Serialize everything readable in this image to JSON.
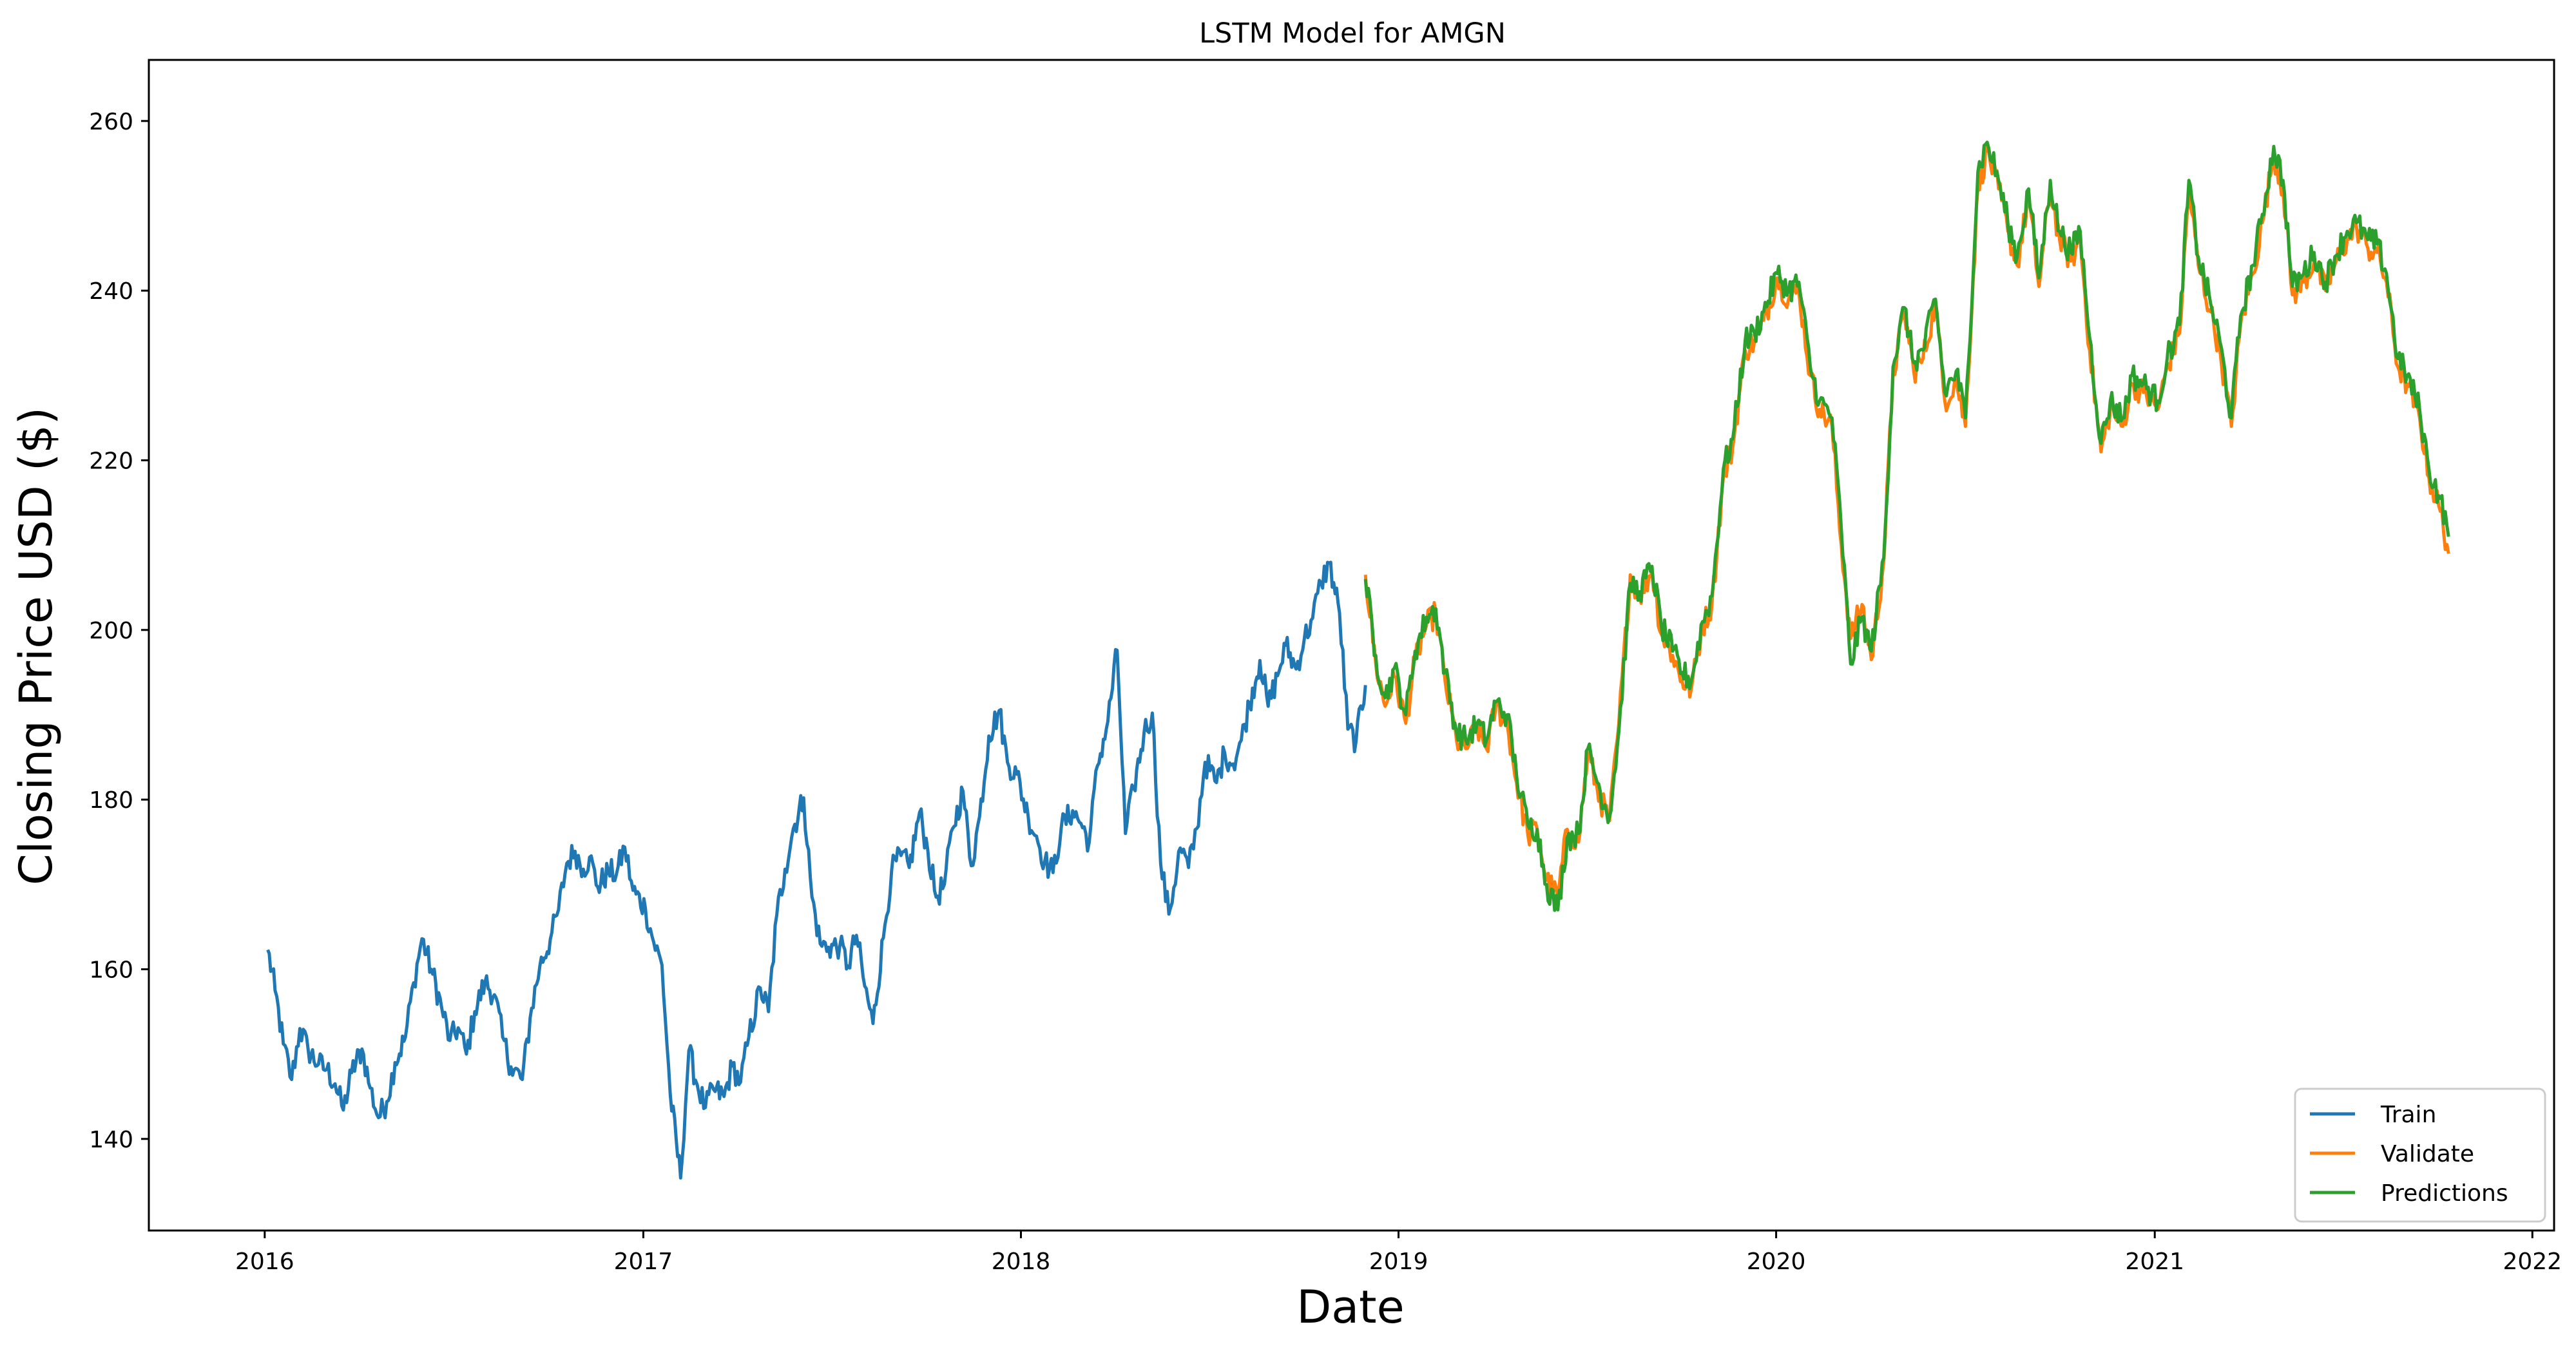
{
  "chart_data": {
    "type": "line",
    "title": "LSTM Model for AMGN",
    "xlabel": "Date",
    "ylabel": "Closing Price USD ($)",
    "xlim": [
      "2015-09-11",
      "2022-01-22"
    ],
    "ylim": [
      129.2,
      267.2
    ],
    "x_tick_labels": [
      "2016",
      "2017",
      "2018",
      "2019",
      "2020",
      "2021",
      "2022"
    ],
    "x_ticks": [
      "2016-01-01",
      "2017-01-01",
      "2018-01-01",
      "2019-01-01",
      "2020-01-01",
      "2021-01-01",
      "2022-01-01"
    ],
    "y_ticks": [
      140,
      160,
      180,
      200,
      220,
      240,
      260
    ],
    "grid": false,
    "legend_position": "lower-right",
    "series": [
      {
        "name": "Train",
        "color": "#1f77b4",
        "x": [
          "2016-01-04",
          "2016-01-11",
          "2016-01-19",
          "2016-01-27",
          "2016-02-04",
          "2016-02-12",
          "2016-02-22",
          "2016-03-01",
          "2016-03-09",
          "2016-03-17",
          "2016-03-25",
          "2016-04-04",
          "2016-04-12",
          "2016-04-20",
          "2016-04-28",
          "2016-05-06",
          "2016-05-16",
          "2016-05-24",
          "2016-06-01",
          "2016-06-10",
          "2016-06-20",
          "2016-06-28",
          "2016-07-06",
          "2016-07-14",
          "2016-07-22",
          "2016-08-01",
          "2016-08-10",
          "2016-08-18",
          "2016-08-26",
          "2016-09-06",
          "2016-09-15",
          "2016-09-23",
          "2016-10-03",
          "2016-10-11",
          "2016-10-19",
          "2016-10-27",
          "2016-11-04",
          "2016-11-10",
          "2016-11-18",
          "2016-11-28",
          "2016-12-06",
          "2016-12-14",
          "2016-12-22",
          "2017-01-03",
          "2017-01-11",
          "2017-01-19",
          "2017-01-27",
          "2017-02-06",
          "2017-02-14",
          "2017-02-22",
          "2017-03-02",
          "2017-03-10",
          "2017-03-20",
          "2017-03-28",
          "2017-04-05",
          "2017-04-13",
          "2017-04-24",
          "2017-05-02",
          "2017-05-10",
          "2017-05-18",
          "2017-05-26",
          "2017-06-05",
          "2017-06-13",
          "2017-06-21",
          "2017-06-29",
          "2017-07-10",
          "2017-07-18",
          "2017-07-26",
          "2017-08-03",
          "2017-08-11",
          "2017-08-21",
          "2017-08-29",
          "2017-09-07",
          "2017-09-15",
          "2017-09-25",
          "2017-10-03",
          "2017-10-11",
          "2017-10-19",
          "2017-10-27",
          "2017-11-06",
          "2017-11-14",
          "2017-11-22",
          "2017-12-01",
          "2017-12-11",
          "2017-12-19",
          "2017-12-28",
          "2018-01-08",
          "2018-01-16",
          "2018-01-24",
          "2018-02-01",
          "2018-02-09",
          "2018-02-20",
          "2018-02-28",
          "2018-03-08",
          "2018-03-16",
          "2018-03-26",
          "2018-04-04",
          "2018-04-12",
          "2018-04-20",
          "2018-04-30",
          "2018-05-08",
          "2018-05-16",
          "2018-05-24",
          "2018-06-04",
          "2018-06-12",
          "2018-06-20",
          "2018-06-28",
          "2018-07-09",
          "2018-07-17",
          "2018-07-25",
          "2018-08-02",
          "2018-08-10",
          "2018-08-20",
          "2018-08-28",
          "2018-09-06",
          "2018-09-14",
          "2018-09-24",
          "2018-10-02",
          "2018-10-10",
          "2018-10-18",
          "2018-10-26",
          "2018-11-05",
          "2018-11-13",
          "2018-11-21",
          "2018-11-30"
        ],
        "values": [
          162.3,
          157.5,
          151.2,
          147.0,
          153.0,
          150.5,
          148.8,
          148.2,
          146.5,
          143.4,
          147.8,
          150.6,
          146.0,
          142.5,
          144.4,
          149.0,
          152.0,
          158.4,
          163.6,
          160.0,
          155.5,
          151.6,
          153.1,
          150.0,
          155.0,
          158.5,
          157.0,
          152.0,
          148.5,
          147.0,
          155.4,
          160.4,
          163.5,
          167.0,
          172.5,
          173.9,
          171.8,
          173.2,
          169.7,
          171.5,
          171.2,
          174.4,
          169.3,
          167.2,
          163.2,
          160.5,
          145.3,
          135.4,
          150.4,
          146.4,
          143.7,
          145.8,
          145.0,
          148.6,
          146.7,
          152.0,
          157.8,
          155.0,
          166.4,
          171.8,
          176.6,
          180.2,
          168.5,
          163.0,
          162.6,
          162.8,
          160.4,
          164.0,
          158.0,
          153.6,
          163.7,
          171.6,
          173.4,
          172.0,
          178.5,
          174.0,
          168.5,
          170.0,
          176.6,
          181.0,
          172.2,
          178.0,
          187.5,
          190.5,
          184.4,
          183.0,
          178.0,
          175.7,
          172.7,
          171.4,
          176.7,
          178.7,
          177.2,
          175.0,
          184.0,
          189.2,
          197.6,
          176.0,
          181.3,
          187.9,
          190.2,
          172.5,
          166.5,
          174.3,
          172.0,
          176.6,
          184.4,
          182.0,
          185.5,
          184.2,
          187.0,
          191.4,
          196.4,
          191.0,
          194.6,
          198.2,
          195.4,
          199.0,
          201.4,
          205.6,
          207.9,
          202.0,
          188.3,
          186.9,
          193.5
        ]
      },
      {
        "name": "Validate",
        "color": "#ff7f0e",
        "x": [
          "2018-11-30",
          "2018-12-10",
          "2018-12-19",
          "2018-12-28",
          "2019-01-08",
          "2019-01-17",
          "2019-01-28",
          "2019-02-06",
          "2019-02-15",
          "2019-02-26",
          "2019-03-07",
          "2019-03-18",
          "2019-03-27",
          "2019-04-05",
          "2019-04-16",
          "2019-04-25",
          "2019-05-06",
          "2019-05-15",
          "2019-05-24",
          "2019-06-04",
          "2019-06-13",
          "2019-06-24",
          "2019-07-03",
          "2019-07-15",
          "2019-07-24",
          "2019-08-02",
          "2019-08-13",
          "2019-08-22",
          "2019-09-03",
          "2019-09-12",
          "2019-09-23",
          "2019-10-02",
          "2019-10-11",
          "2019-10-22",
          "2019-10-31",
          "2019-11-11",
          "2019-11-20",
          "2019-12-02",
          "2019-12-11",
          "2019-12-20",
          "2020-01-02",
          "2020-01-13",
          "2020-01-23",
          "2020-02-03",
          "2020-02-12",
          "2020-02-24",
          "2020-03-04",
          "2020-03-13",
          "2020-03-24",
          "2020-04-02",
          "2020-04-14",
          "2020-04-23",
          "2020-05-04",
          "2020-05-13",
          "2020-05-22",
          "2020-06-03",
          "2020-06-12",
          "2020-06-23",
          "2020-07-02",
          "2020-07-14",
          "2020-07-23",
          "2020-08-03",
          "2020-08-12",
          "2020-08-21",
          "2020-09-01",
          "2020-09-11",
          "2020-09-22",
          "2020-10-01",
          "2020-10-12",
          "2020-10-21",
          "2020-10-30",
          "2020-11-10",
          "2020-11-19",
          "2020-12-01",
          "2020-12-10",
          "2020-12-21",
          "2021-01-04",
          "2021-01-13",
          "2021-01-25",
          "2021-02-03",
          "2021-02-12",
          "2021-02-24",
          "2021-03-05",
          "2021-03-16",
          "2021-03-25",
          "2021-04-06",
          "2021-04-15",
          "2021-04-26",
          "2021-05-05",
          "2021-05-14",
          "2021-05-25",
          "2021-06-04",
          "2021-06-15",
          "2021-06-24",
          "2021-07-06",
          "2021-07-15",
          "2021-07-26",
          "2021-08-04",
          "2021-08-13",
          "2021-08-24",
          "2021-09-02",
          "2021-09-14",
          "2021-09-23",
          "2021-10-04",
          "2021-10-12"
        ],
        "values": [
          206.5,
          196.0,
          191.0,
          194.5,
          189.0,
          196.5,
          200.5,
          202.0,
          194.0,
          187.0,
          186.0,
          188.5,
          186.0,
          191.0,
          189.0,
          182.0,
          175.8,
          176.5,
          170.5,
          168.5,
          176.5,
          175.0,
          185.5,
          180.0,
          177.5,
          189.0,
          206.5,
          204.0,
          207.0,
          199.5,
          197.0,
          194.0,
          193.0,
          200.5,
          203.0,
          218.0,
          221.5,
          233.0,
          234.0,
          236.5,
          241.5,
          239.0,
          240.0,
          230.0,
          226.0,
          224.0,
          210.0,
          199.0,
          203.0,
          196.5,
          208.0,
          230.0,
          237.5,
          230.5,
          232.0,
          238.5,
          227.0,
          229.5,
          224.0,
          252.0,
          256.5,
          252.0,
          247.0,
          243.0,
          251.0,
          240.5,
          252.0,
          246.0,
          243.5,
          246.0,
          233.0,
          221.0,
          226.0,
          224.0,
          229.0,
          228.0,
          226.0,
          231.0,
          235.0,
          252.0,
          243.0,
          237.5,
          233.0,
          224.0,
          236.0,
          242.0,
          248.0,
          256.0,
          252.0,
          239.5,
          241.0,
          243.5,
          240.0,
          243.0,
          246.0,
          247.5,
          245.0,
          244.5,
          241.0,
          231.0,
          229.0,
          225.0,
          218.0,
          214.0,
          209.0
        ]
      },
      {
        "name": "Predictions",
        "color": "#2ca02c",
        "x": [
          "2018-11-30",
          "2018-12-10",
          "2018-12-19",
          "2018-12-28",
          "2019-01-08",
          "2019-01-17",
          "2019-01-28",
          "2019-02-06",
          "2019-02-15",
          "2019-02-26",
          "2019-03-07",
          "2019-03-18",
          "2019-03-27",
          "2019-04-05",
          "2019-04-16",
          "2019-04-25",
          "2019-05-06",
          "2019-05-15",
          "2019-05-24",
          "2019-06-04",
          "2019-06-13",
          "2019-06-24",
          "2019-07-03",
          "2019-07-15",
          "2019-07-24",
          "2019-08-02",
          "2019-08-13",
          "2019-08-22",
          "2019-09-03",
          "2019-09-12",
          "2019-09-23",
          "2019-10-02",
          "2019-10-11",
          "2019-10-22",
          "2019-10-31",
          "2019-11-11",
          "2019-11-20",
          "2019-12-02",
          "2019-12-11",
          "2019-12-20",
          "2020-01-02",
          "2020-01-13",
          "2020-01-23",
          "2020-02-03",
          "2020-02-12",
          "2020-02-24",
          "2020-03-04",
          "2020-03-13",
          "2020-03-24",
          "2020-04-02",
          "2020-04-14",
          "2020-04-23",
          "2020-05-04",
          "2020-05-13",
          "2020-05-22",
          "2020-06-03",
          "2020-06-12",
          "2020-06-23",
          "2020-07-02",
          "2020-07-14",
          "2020-07-23",
          "2020-08-03",
          "2020-08-12",
          "2020-08-21",
          "2020-09-01",
          "2020-09-11",
          "2020-09-22",
          "2020-10-01",
          "2020-10-12",
          "2020-10-21",
          "2020-10-30",
          "2020-11-10",
          "2020-11-19",
          "2020-12-01",
          "2020-12-10",
          "2020-12-21",
          "2021-01-04",
          "2021-01-13",
          "2021-01-25",
          "2021-02-03",
          "2021-02-12",
          "2021-02-24",
          "2021-03-05",
          "2021-03-16",
          "2021-03-25",
          "2021-04-06",
          "2021-04-15",
          "2021-04-26",
          "2021-05-05",
          "2021-05-14",
          "2021-05-25",
          "2021-06-04",
          "2021-06-15",
          "2021-06-24",
          "2021-07-06",
          "2021-07-15",
          "2021-07-26",
          "2021-08-04",
          "2021-08-13",
          "2021-08-24",
          "2021-09-02",
          "2021-09-14",
          "2021-09-23",
          "2021-10-04",
          "2021-10-12"
        ],
        "values": [
          206.0,
          197.0,
          192.0,
          195.5,
          190.0,
          197.5,
          201.5,
          202.5,
          195.0,
          188.0,
          187.0,
          189.0,
          187.0,
          191.5,
          190.0,
          183.0,
          177.0,
          176.5,
          170.0,
          167.0,
          175.5,
          176.0,
          186.0,
          181.0,
          178.0,
          188.0,
          205.5,
          204.5,
          207.5,
          200.5,
          197.5,
          195.0,
          194.0,
          201.0,
          204.0,
          219.0,
          222.5,
          234.0,
          235.0,
          237.5,
          242.0,
          240.0,
          241.0,
          231.0,
          227.0,
          225.0,
          212.0,
          196.0,
          201.5,
          197.5,
          208.5,
          231.0,
          238.0,
          231.5,
          233.0,
          239.0,
          228.0,
          230.5,
          225.0,
          254.0,
          257.5,
          253.0,
          248.0,
          244.0,
          252.0,
          241.5,
          253.0,
          247.0,
          244.5,
          247.0,
          234.5,
          222.0,
          227.0,
          225.0,
          230.0,
          229.0,
          227.0,
          232.0,
          236.0,
          253.0,
          244.0,
          238.5,
          234.0,
          225.0,
          237.0,
          243.0,
          249.0,
          257.0,
          253.0,
          240.5,
          242.0,
          244.5,
          241.0,
          244.0,
          247.0,
          248.0,
          246.0,
          245.5,
          242.0,
          232.0,
          230.0,
          226.0,
          219.0,
          215.5,
          211.0
        ]
      }
    ]
  }
}
